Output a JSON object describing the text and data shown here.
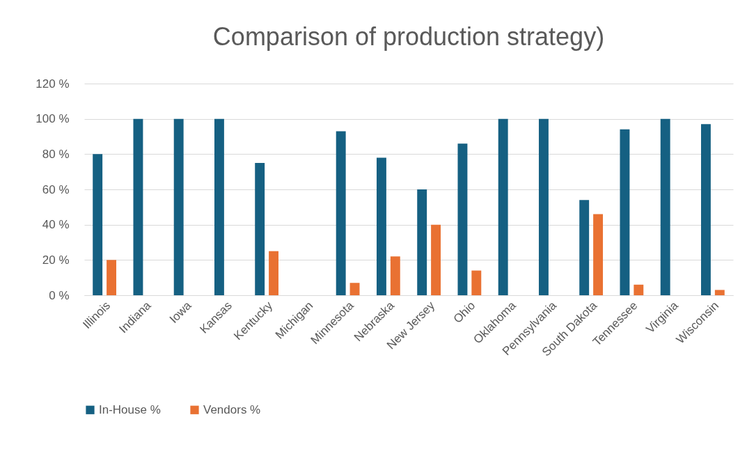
{
  "chart_data": {
    "type": "bar",
    "title": "Comparison of production strategy)",
    "categories": [
      "Illinois",
      "Indiana",
      "Iowa",
      "Kansas",
      "Kentucky",
      "Michigan",
      "Minnesota",
      "Nebraska",
      "New Jersey",
      "Ohio",
      "Oklahoma",
      "Pennsylvania",
      "South Dakota",
      "Tennessee",
      "Virginia",
      "Wisconsin"
    ],
    "series": [
      {
        "name": "In-House %",
        "color": "#156082",
        "values": [
          80,
          100,
          100,
          100,
          75,
          0,
          93,
          78,
          60,
          86,
          100,
          100,
          54,
          94,
          100,
          97
        ]
      },
      {
        "name": "Vendors %",
        "color": "#e97132",
        "values": [
          20,
          0,
          0,
          0,
          25,
          0,
          7,
          22,
          40,
          14,
          0,
          0,
          46,
          6,
          0,
          3
        ]
      }
    ],
    "ylim": [
      0,
      120
    ],
    "yticks": [
      {
        "value": 0,
        "label": "0 %"
      },
      {
        "value": 20,
        "label": "20 %"
      },
      {
        "value": 40,
        "label": "40 %"
      },
      {
        "value": 60,
        "label": "60 %"
      },
      {
        "value": 80,
        "label": "80 %"
      },
      {
        "value": 100,
        "label": "100 %"
      },
      {
        "value": 120,
        "label": "120 %"
      }
    ],
    "grid": "y",
    "legend": "bottom"
  }
}
